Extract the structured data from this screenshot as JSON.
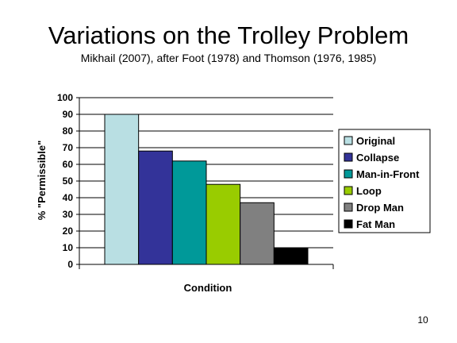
{
  "slide": {
    "title": "Variations on the Trolley Problem",
    "subtitle": "Mikhail (2007), after Foot (1978) and Thomson (1976, 1985)",
    "page_number": "10"
  },
  "chart_data": {
    "type": "bar",
    "title": "",
    "xlabel": "Condition",
    "ylabel": "% \"Permissible\"",
    "ylim": [
      0,
      100
    ],
    "yticks": [
      0,
      10,
      20,
      30,
      40,
      50,
      60,
      70,
      80,
      90,
      100
    ],
    "grid": true,
    "legend_position": "right",
    "series": [
      {
        "name": "Original",
        "value": 90,
        "color": "#b9dfe3"
      },
      {
        "name": "Collapse",
        "value": 68,
        "color": "#333399"
      },
      {
        "name": "Man-in-Front",
        "value": 62,
        "color": "#009999"
      },
      {
        "name": "Loop",
        "value": 48,
        "color": "#99cc00"
      },
      {
        "name": "Drop Man",
        "value": 37,
        "color": "#808080"
      },
      {
        "name": "Fat Man",
        "value": 10,
        "color": "#000000"
      }
    ]
  }
}
